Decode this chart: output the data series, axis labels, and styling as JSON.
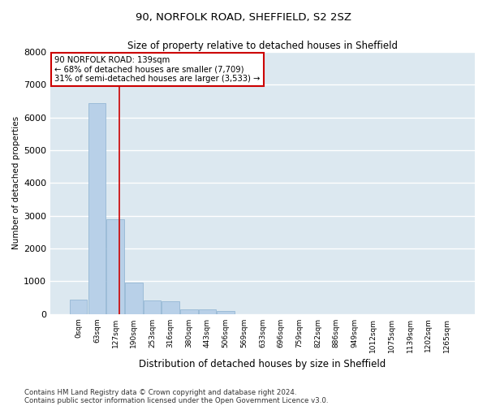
{
  "title": "90, NORFOLK ROAD, SHEFFIELD, S2 2SZ",
  "subtitle": "Size of property relative to detached houses in Sheffield",
  "xlabel": "Distribution of detached houses by size in Sheffield",
  "ylabel": "Number of detached properties",
  "bar_color": "#b8d0e8",
  "bar_edge_color": "#8ab0d0",
  "background_color": "#dce8f0",
  "grid_color": "#ffffff",
  "categories": [
    "0sqm",
    "63sqm",
    "127sqm",
    "190sqm",
    "253sqm",
    "316sqm",
    "380sqm",
    "443sqm",
    "506sqm",
    "569sqm",
    "633sqm",
    "696sqm",
    "759sqm",
    "822sqm",
    "886sqm",
    "949sqm",
    "1012sqm",
    "1075sqm",
    "1139sqm",
    "1202sqm",
    "1265sqm"
  ],
  "values": [
    430,
    6450,
    2900,
    970,
    420,
    390,
    150,
    130,
    80,
    0,
    0,
    0,
    0,
    0,
    0,
    0,
    0,
    0,
    0,
    0,
    0
  ],
  "property_size_idx": 2.2,
  "property_label": "90 NORFOLK ROAD: 139sqm",
  "annotation_line1": "← 68% of detached houses are smaller (7,709)",
  "annotation_line2": "31% of semi-detached houses are larger (3,533) →",
  "red_line_color": "#cc0000",
  "annotation_box_edge_color": "#cc0000",
  "ylim": [
    0,
    8000
  ],
  "yticks": [
    0,
    1000,
    2000,
    3000,
    4000,
    5000,
    6000,
    7000,
    8000
  ],
  "footnote_line1": "Contains HM Land Registry data © Crown copyright and database right 2024.",
  "footnote_line2": "Contains public sector information licensed under the Open Government Licence v3.0.",
  "bin_width": 63,
  "fig_width": 6.0,
  "fig_height": 5.0
}
